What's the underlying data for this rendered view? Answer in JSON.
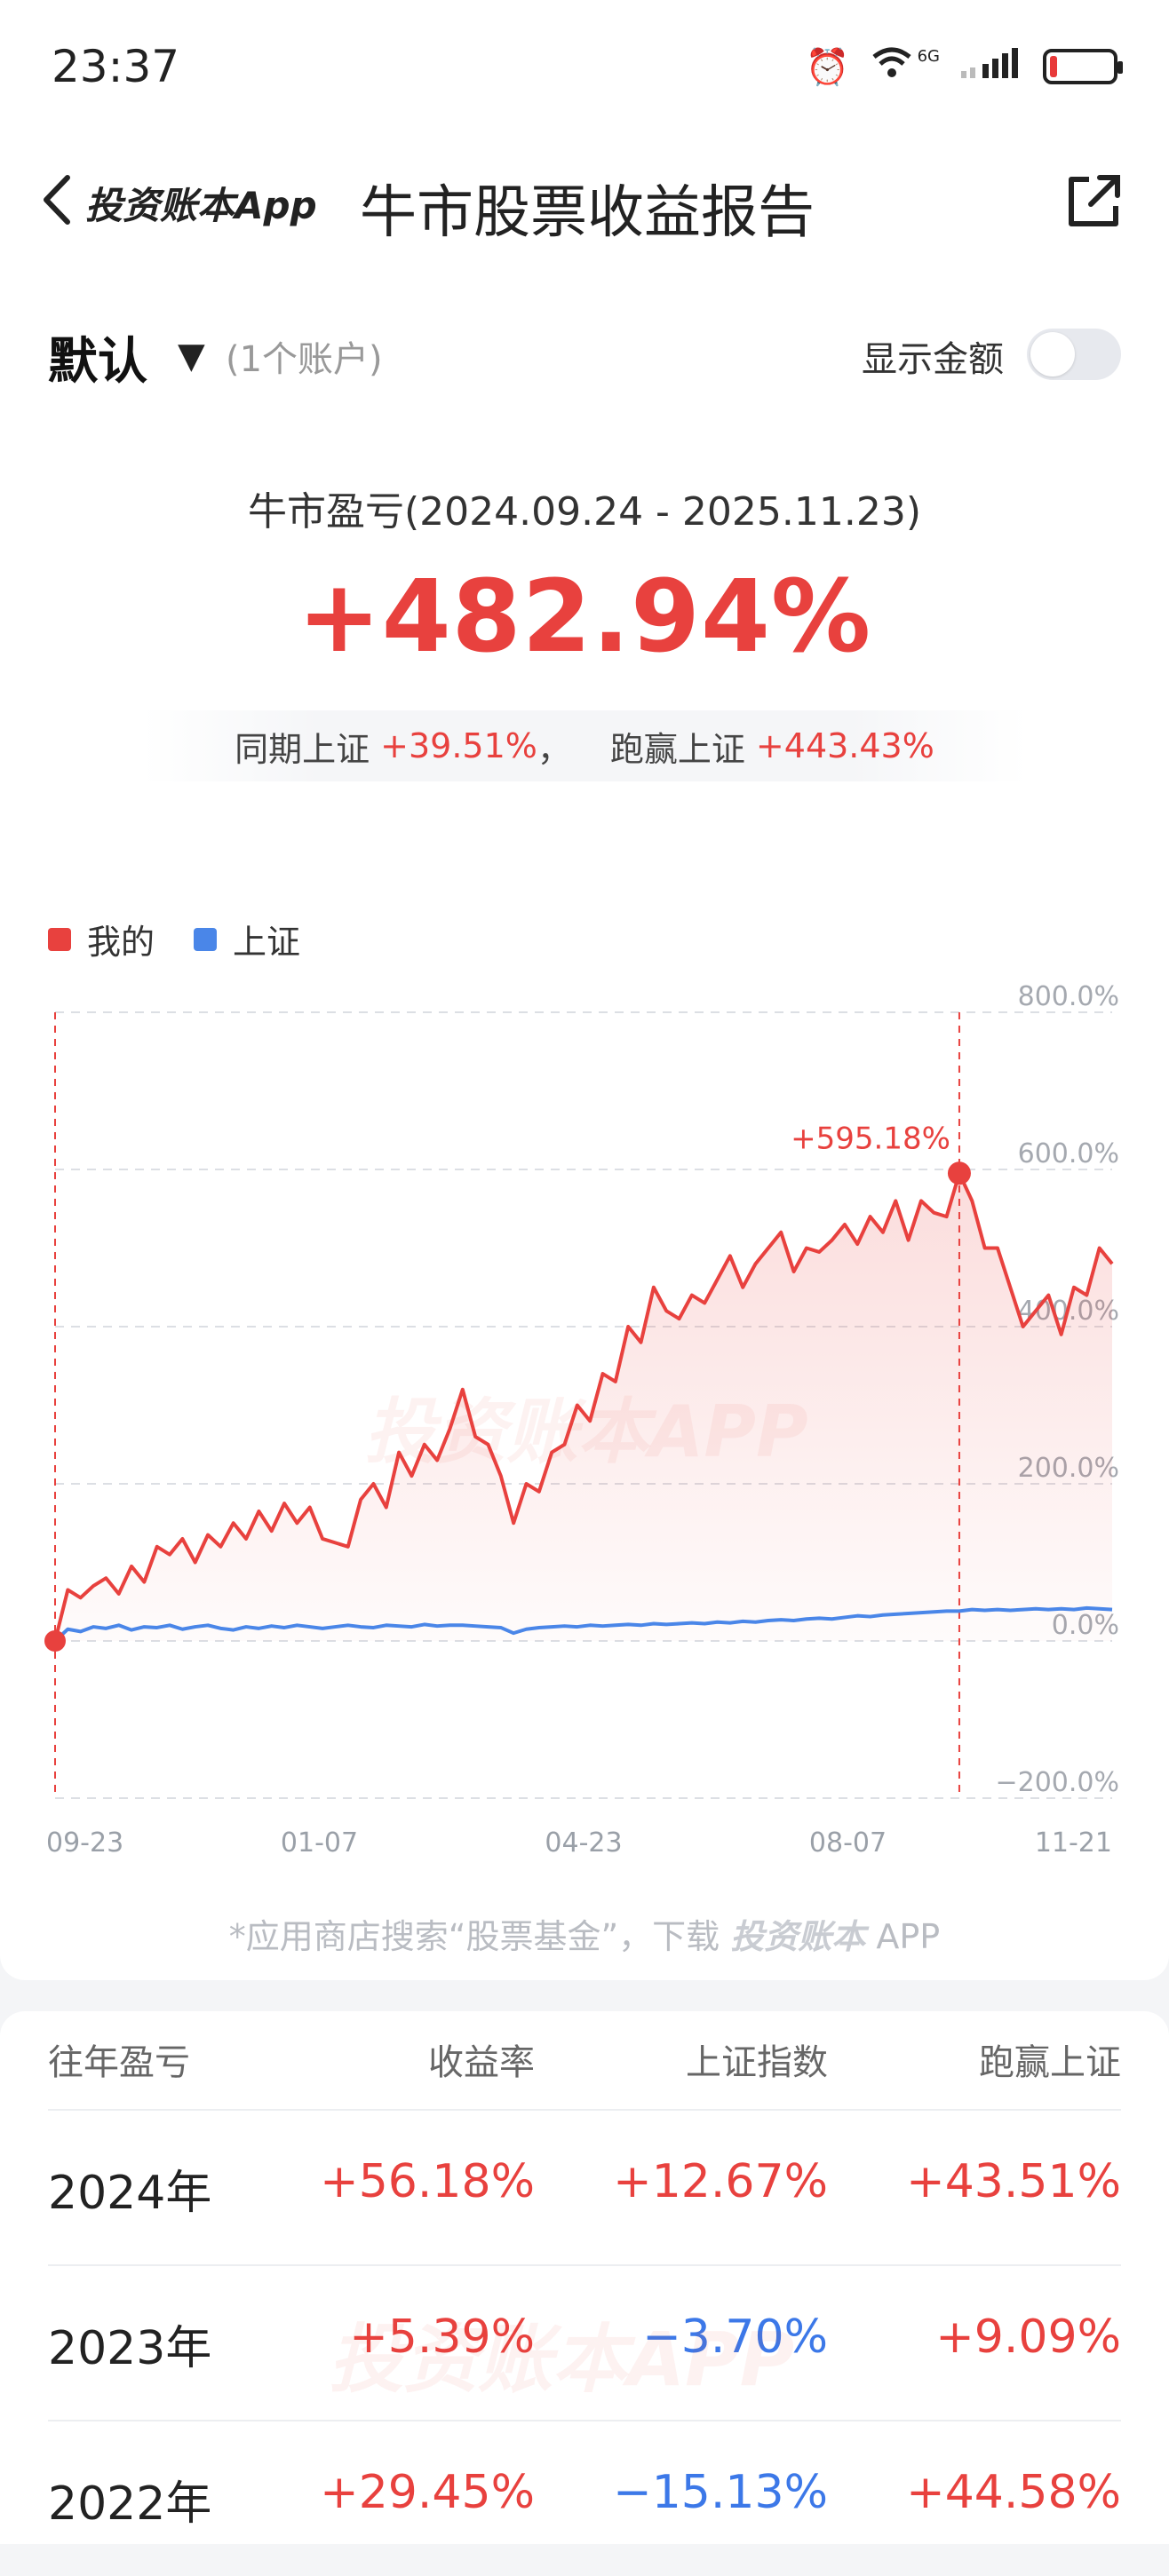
{
  "status_bar": {
    "time": "23:37",
    "network_label": "6G"
  },
  "nav": {
    "back_label": "投资账本App",
    "title": "牛市股票收益报告"
  },
  "account": {
    "name": "默认",
    "count": "(1个账户)",
    "show_amount_label": "显示金额",
    "show_amount_on": false
  },
  "summary": {
    "period": "牛市盈亏(2024.09.24 - 2025.11.23)",
    "return": "+482.94%",
    "sse_label": "同期上证",
    "sse_value": "+39.51%",
    "separator": "，",
    "beat_label": "跑赢上证",
    "beat_value": "+443.43%"
  },
  "colors": {
    "mine": "#e8413e",
    "sse": "#4a86e8",
    "negative": "#3c78e8"
  },
  "chart_data": {
    "type": "line",
    "series": [
      {
        "name": "我的",
        "color": "#e8413e",
        "values": [
          0,
          65,
          55,
          70,
          80,
          60,
          95,
          75,
          120,
          110,
          130,
          100,
          135,
          120,
          150,
          130,
          165,
          140,
          175,
          150,
          170,
          130,
          125,
          120,
          180,
          200,
          170,
          240,
          210,
          250,
          230,
          270,
          320,
          260,
          250,
          210,
          150,
          200,
          190,
          240,
          250,
          300,
          280,
          340,
          330,
          400,
          380,
          450,
          420,
          410,
          440,
          430,
          460,
          490,
          450,
          480,
          500,
          520,
          470,
          500,
          495,
          510,
          530,
          505,
          540,
          520,
          560,
          510,
          560,
          545,
          540,
          595,
          560,
          500,
          500,
          450,
          400,
          420,
          440,
          390,
          450,
          440,
          500,
          480
        ]
      },
      {
        "name": "上证",
        "color": "#4a86e8",
        "values": [
          0,
          15,
          12,
          18,
          16,
          20,
          14,
          18,
          17,
          20,
          15,
          18,
          20,
          16,
          14,
          18,
          16,
          19,
          17,
          20,
          18,
          16,
          18,
          20,
          18,
          17,
          20,
          19,
          18,
          21,
          19,
          20,
          20,
          19,
          18,
          17,
          10,
          15,
          17,
          18,
          19,
          18,
          20,
          19,
          20,
          21,
          20,
          22,
          21,
          22,
          23,
          22,
          24,
          23,
          25,
          24,
          26,
          27,
          26,
          28,
          29,
          28,
          30,
          32,
          31,
          33,
          34,
          35,
          36,
          37,
          38,
          38,
          40,
          39,
          40,
          39,
          40,
          41,
          40,
          41,
          40,
          42,
          41,
          40
        ]
      }
    ],
    "x_ticks": [
      "09-23",
      "01-07",
      "04-23",
      "08-07",
      "11-21"
    ],
    "y_ticks": [
      "800.0%",
      "600.0%",
      "400.0%",
      "200.0%",
      "0.0%",
      "−200.0%"
    ],
    "ylim": [
      -200,
      800
    ],
    "peak_label": "+595.18%",
    "peak_value": 595.18,
    "grid": true,
    "legend": "top-left"
  },
  "download_tip": {
    "prefix": "*应用商店搜索“股票基金”，下载",
    "brand": "投资账本",
    "suffix": " APP"
  },
  "watermark": "投资账本APP",
  "table": {
    "headers": [
      "往年盈亏",
      "收益率",
      "上证指数",
      "跑赢上证"
    ],
    "rows": [
      {
        "year": "2024年",
        "return": "+56.18%",
        "sse": "+12.67%",
        "beat": "+43.51%",
        "sse_negative": false
      },
      {
        "year": "2023年",
        "return": "+5.39%",
        "sse": "−3.70%",
        "beat": "+9.09%",
        "sse_negative": true
      },
      {
        "year": "2022年",
        "return": "+29.45%",
        "sse": "−15.13%",
        "beat": "+44.58%",
        "sse_negative": true
      }
    ]
  }
}
